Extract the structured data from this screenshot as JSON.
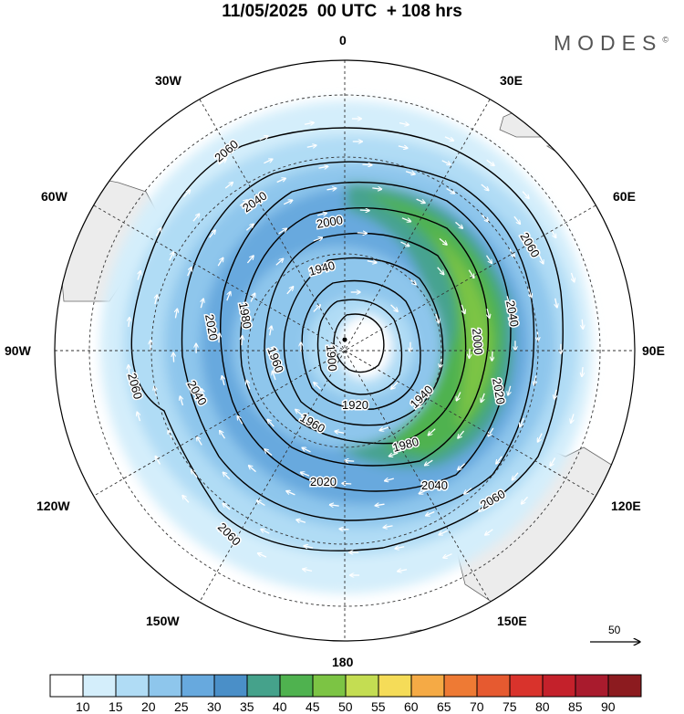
{
  "title": "11/05/2025  00 UTC  + 108 hrs",
  "brand": "MODES",
  "brand_mark": "©",
  "longitude_labels": {
    "n0": "0",
    "n30e": "30E",
    "n60e": "60E",
    "n90e": "90E",
    "n120e": "120E",
    "n150e": "150E",
    "n180": "180",
    "n150w": "150W",
    "n120w": "120W",
    "n90w": "90W",
    "n60w": "60W",
    "n30w": "30W"
  },
  "contour_labels": [
    "2060",
    "2060",
    "2060",
    "2060",
    "2060",
    "2040",
    "2040",
    "2040",
    "2040",
    "2020",
    "2020",
    "2020",
    "2000",
    "2000",
    "1980",
    "1980",
    "1960",
    "1960",
    "1940",
    "1940",
    "1920",
    "1900"
  ],
  "wind_scale": {
    "value": "50"
  },
  "colorbar": {
    "ticks": [
      "10",
      "15",
      "20",
      "25",
      "30",
      "35",
      "40",
      "45",
      "50",
      "55",
      "60",
      "65",
      "70",
      "75",
      "80",
      "85",
      "90"
    ],
    "colors": [
      "#ffffff",
      "#d4eefb",
      "#b0dcf5",
      "#8ec6ec",
      "#67a9de",
      "#4a8fc8",
      "#45a28b",
      "#4fb24f",
      "#7cc444",
      "#c4dd52",
      "#f5dc58",
      "#f5aa45",
      "#ee7a34",
      "#e65a30",
      "#d9332c",
      "#c4212b",
      "#a91b2d",
      "#8c1b1f"
    ]
  },
  "colors": {
    "land": "#ececec",
    "coast": "#666666",
    "contour": "#000000",
    "arrow": "#ffffff"
  }
}
